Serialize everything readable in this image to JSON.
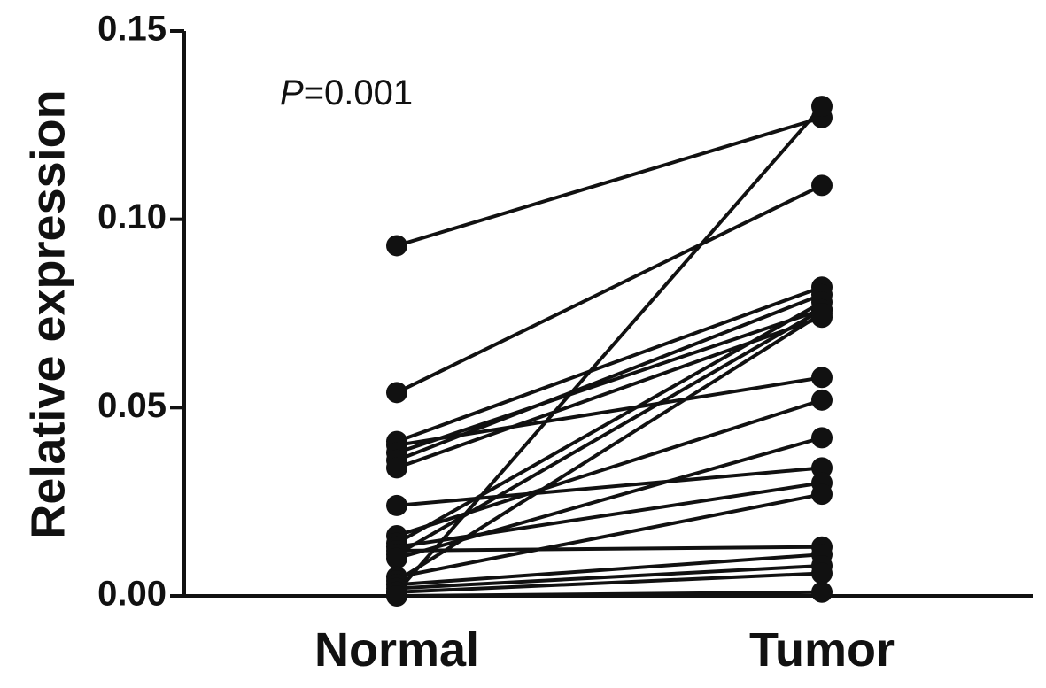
{
  "chart_data": {
    "type": "line",
    "subtype": "paired-before-after",
    "categories": [
      "Normal",
      "Tumor"
    ],
    "ylabel": "Relative expression",
    "xlabel": "",
    "ylim": [
      0,
      0.15
    ],
    "yticks": [
      "0.00",
      "0.05",
      "0.10",
      "0.15"
    ],
    "annotation": {
      "italic": "P",
      "text": "=0.001"
    },
    "grid": false,
    "legend": "none",
    "color": "#111111",
    "pairs": [
      [
        0.093,
        0.127
      ],
      [
        0.054,
        0.109
      ],
      [
        0.041,
        0.082
      ],
      [
        0.04,
        0.058
      ],
      [
        0.038,
        0.076
      ],
      [
        0.036,
        0.08
      ],
      [
        0.034,
        0.074
      ],
      [
        0.024,
        0.034
      ],
      [
        0.016,
        0.052
      ],
      [
        0.014,
        0.078
      ],
      [
        0.013,
        0.03
      ],
      [
        0.012,
        0.013
      ],
      [
        0.011,
        0.076
      ],
      [
        0.01,
        0.042
      ],
      [
        0.005,
        0.027
      ],
      [
        0.004,
        0.075
      ],
      [
        0.003,
        0.011
      ],
      [
        0.002,
        0.008
      ],
      [
        0.001,
        0.006
      ],
      [
        0.001,
        0.13
      ],
      [
        0.0,
        0.001
      ]
    ]
  }
}
